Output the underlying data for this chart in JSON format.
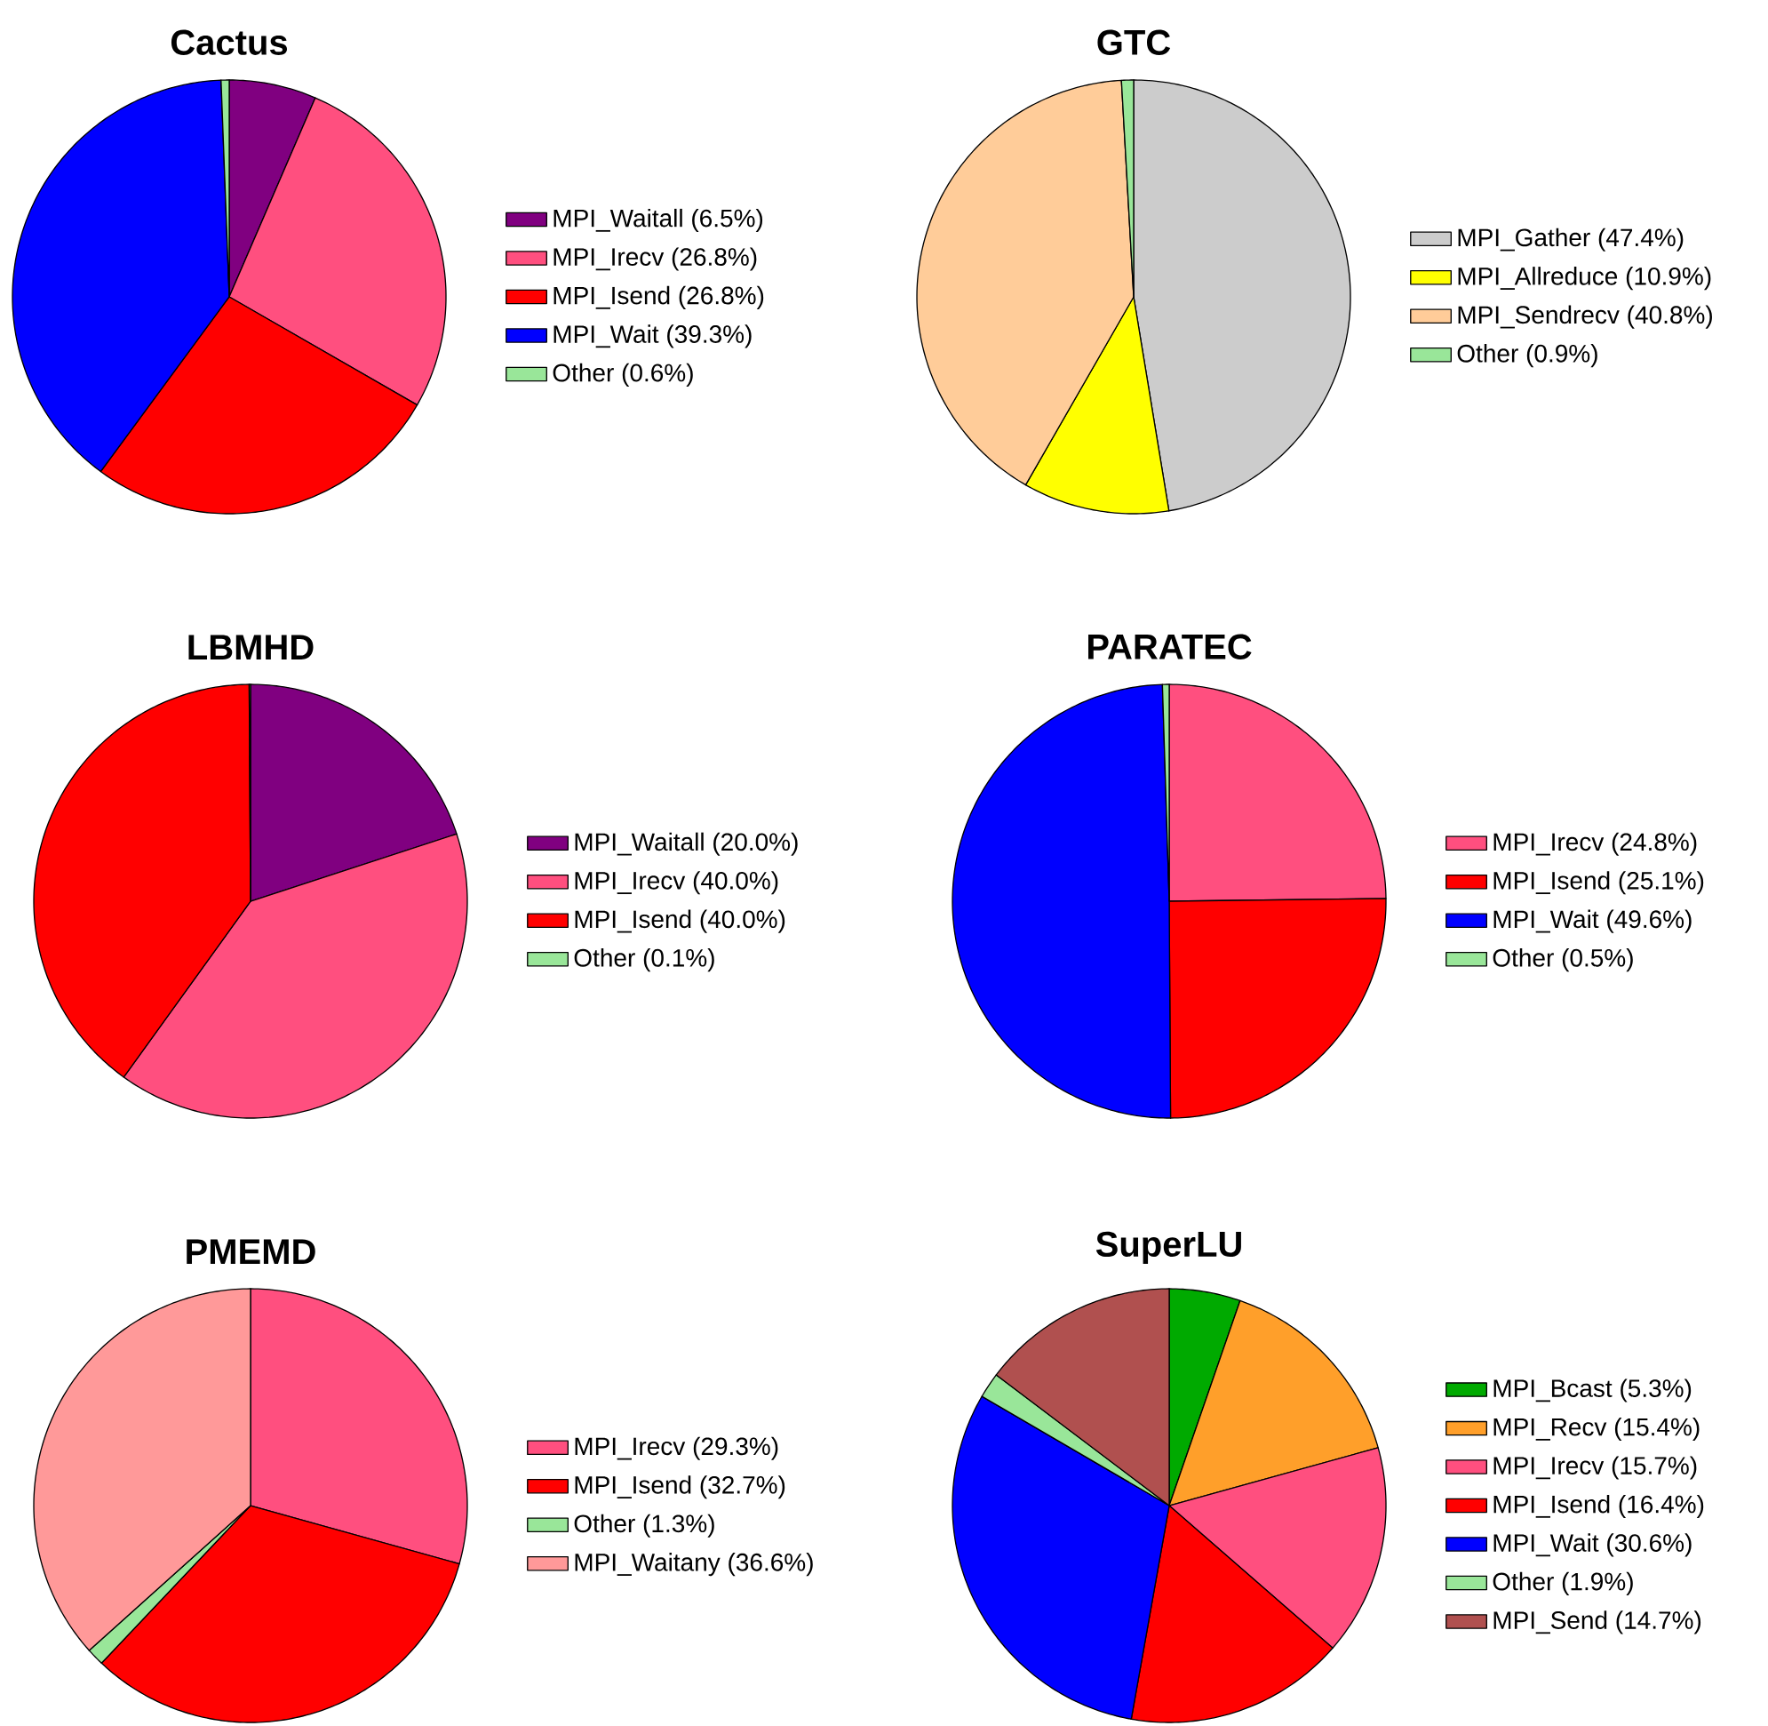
{
  "chart_data": [
    {
      "type": "pie",
      "title": "Cactus",
      "legend": "right",
      "categories": [
        "MPI_Waitall (6.5%)",
        "MPI_Irecv (26.8%)",
        "MPI_Isend (26.8%)",
        "MPI_Wait (39.3%)",
        "Other (0.6%)"
      ],
      "values": [
        6.5,
        26.8,
        26.8,
        39.3,
        0.6
      ],
      "colors": [
        "#800080",
        "#ff4f7f",
        "#ff0000",
        "#0000ff",
        "#99e699"
      ]
    },
    {
      "type": "pie",
      "title": "GTC",
      "legend": "right",
      "categories": [
        "MPI_Gather (47.4%)",
        "MPI_Allreduce (10.9%)",
        "MPI_Sendrecv (40.8%)",
        "Other (0.9%)"
      ],
      "values": [
        47.4,
        10.9,
        40.8,
        0.9
      ],
      "colors": [
        "#cccccc",
        "#ffff00",
        "#ffcc99",
        "#99e699"
      ]
    },
    {
      "type": "pie",
      "title": "LBMHD",
      "legend": "right",
      "categories": [
        "MPI_Waitall (20.0%)",
        "MPI_Irecv (40.0%)",
        "MPI_Isend (40.0%)",
        "Other (0.1%)"
      ],
      "values": [
        20.0,
        40.0,
        40.0,
        0.1
      ],
      "colors": [
        "#800080",
        "#ff4f7f",
        "#ff0000",
        "#99e699"
      ]
    },
    {
      "type": "pie",
      "title": "PARATEC",
      "legend": "right",
      "categories": [
        "MPI_Irecv (24.8%)",
        "MPI_Isend (25.1%)",
        "MPI_Wait (49.6%)",
        "Other (0.5%)"
      ],
      "values": [
        24.8,
        25.1,
        49.6,
        0.5
      ],
      "colors": [
        "#ff4f7f",
        "#ff0000",
        "#0000ff",
        "#99e699"
      ]
    },
    {
      "type": "pie",
      "title": "PMEMD",
      "legend": "right",
      "categories": [
        "MPI_Irecv (29.3%)",
        "MPI_Isend (32.7%)",
        "Other (1.3%)",
        "MPI_Waitany (36.6%)"
      ],
      "values": [
        29.3,
        32.7,
        1.3,
        36.6
      ],
      "colors": [
        "#ff4f7f",
        "#ff0000",
        "#99e699",
        "#ff9999"
      ]
    },
    {
      "type": "pie",
      "title": "SuperLU",
      "legend": "right",
      "categories": [
        "MPI_Bcast (5.3%)",
        "MPI_Recv (15.4%)",
        "MPI_Irecv (15.7%)",
        "MPI_Isend (16.4%)",
        "MPI_Wait (30.6%)",
        "Other (1.9%)",
        "MPI_Send (14.7%)"
      ],
      "values": [
        5.3,
        15.4,
        15.7,
        16.4,
        30.6,
        1.9,
        14.7
      ],
      "colors": [
        "#00aa00",
        "#ff9f2a",
        "#ff4f7f",
        "#ff0000",
        "#0000ff",
        "#99e699",
        "#b0504f"
      ]
    }
  ]
}
